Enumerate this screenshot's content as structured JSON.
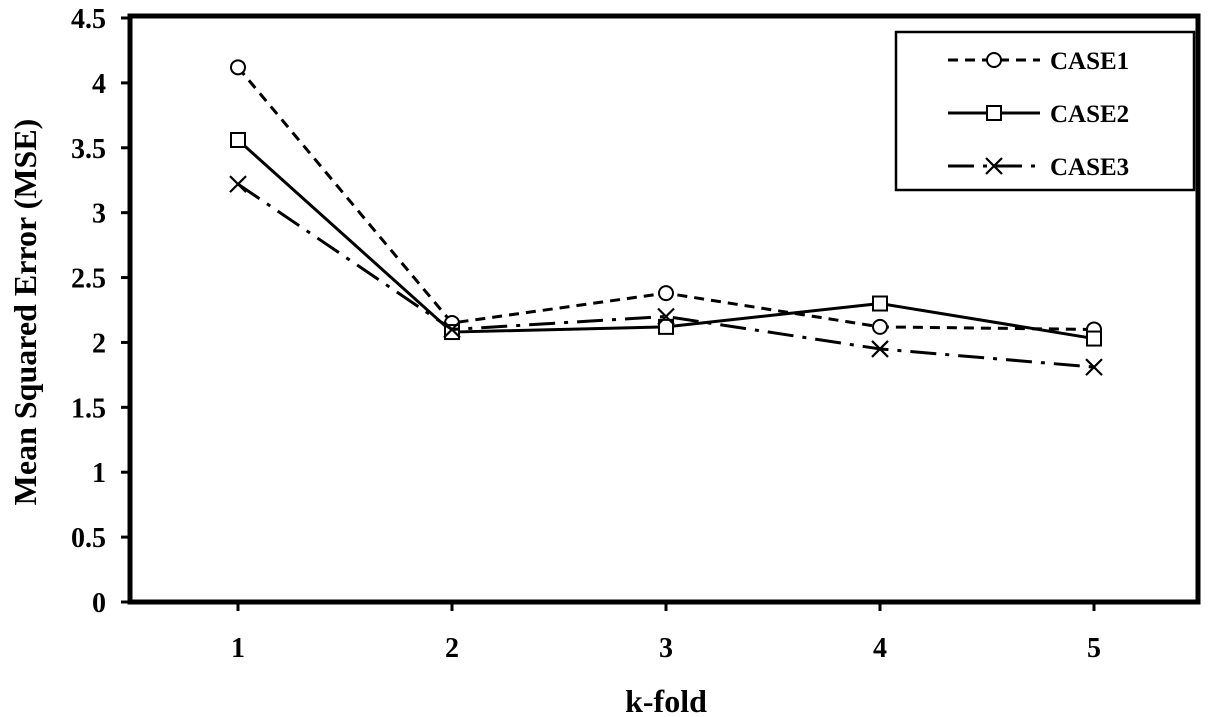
{
  "chart_data": {
    "type": "line",
    "title": "",
    "xlabel": "k-fold",
    "ylabel": "Mean Squared Error (MSE)",
    "ylim": [
      0,
      4.5
    ],
    "yticks": [
      "0",
      "0.5",
      "1",
      "1.5",
      "2",
      "2.5",
      "3",
      "3.5",
      "4",
      "4.5"
    ],
    "categories": [
      "1",
      "2",
      "3",
      "4",
      "5"
    ],
    "grid": false,
    "legend_position": "top-right",
    "series": [
      {
        "name": "CASE1",
        "marker": "circle",
        "line": "dashed",
        "values": [
          4.12,
          2.15,
          2.38,
          2.12,
          2.1
        ]
      },
      {
        "name": "CASE2",
        "marker": "square",
        "line": "solid",
        "values": [
          3.56,
          2.08,
          2.12,
          2.3,
          2.03
        ]
      },
      {
        "name": "CASE3",
        "marker": "x",
        "line": "dash-dot",
        "values": [
          3.22,
          2.1,
          2.2,
          1.95,
          1.81
        ]
      }
    ]
  }
}
